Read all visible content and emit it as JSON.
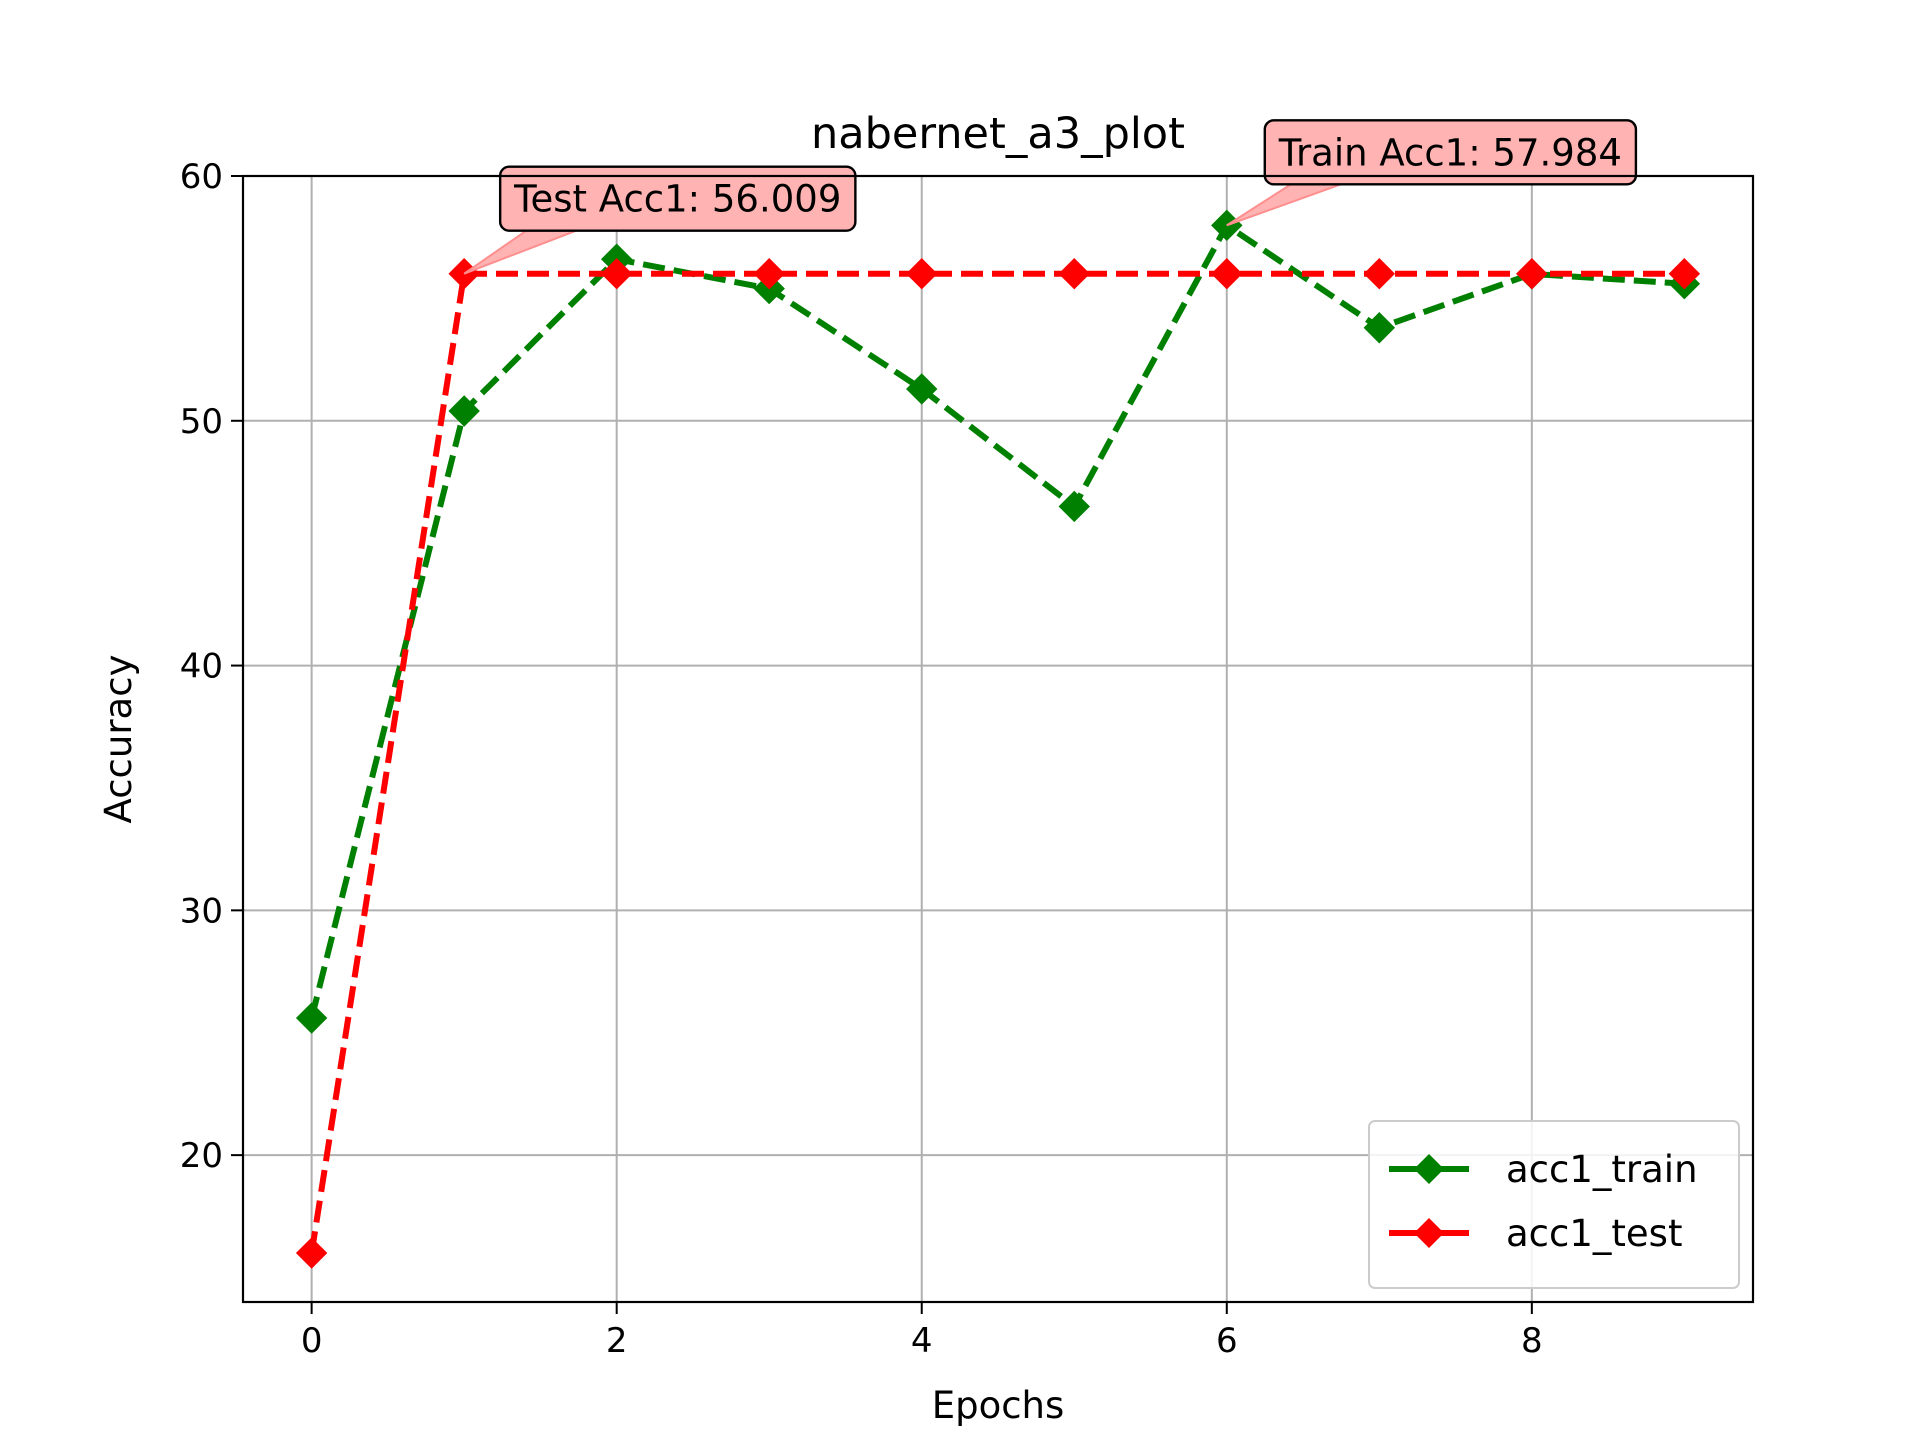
{
  "chart_data": {
    "type": "line",
    "title": "nabernet_a3_plot",
    "xlabel": "Epochs",
    "ylabel": "Accuracy",
    "xlim": [
      -0.45,
      9.45
    ],
    "ylim": [
      14,
      60
    ],
    "x": [
      0,
      1,
      2,
      3,
      4,
      5,
      6,
      7,
      8,
      9
    ],
    "xticks": [
      0,
      2,
      4,
      6,
      8
    ],
    "yticks": [
      20,
      30,
      40,
      50,
      60
    ],
    "grid": true,
    "legend_position": "lower right",
    "series": [
      {
        "name": "acc1_train",
        "color": "#008000",
        "marker": "diamond",
        "linestyle": "dashed",
        "values": [
          25.6,
          50.4,
          56.6,
          55.4,
          51.3,
          46.5,
          57.984,
          53.8,
          56.0,
          55.6
        ]
      },
      {
        "name": "acc1_test",
        "color": "#ff0000",
        "marker": "diamond",
        "linestyle": "dashed",
        "values": [
          16.0,
          56.009,
          56.009,
          56.009,
          56.009,
          56.009,
          56.009,
          56.009,
          56.009,
          56.009
        ]
      }
    ],
    "annotations": [
      {
        "text": "Test Acc1: 56.009",
        "point": [
          1,
          56.009
        ],
        "series": "acc1_test"
      },
      {
        "text": "Train Acc1: 57.984",
        "point": [
          6,
          57.984
        ],
        "series": "acc1_train"
      }
    ],
    "annotation_fill": "#ffb3b3"
  }
}
